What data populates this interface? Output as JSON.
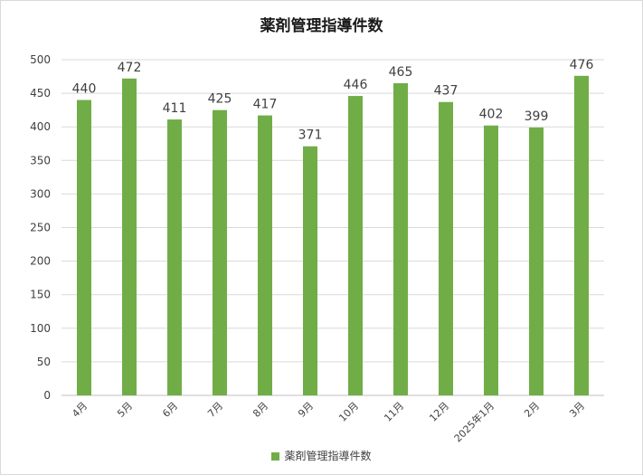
{
  "chart_data": {
    "type": "bar",
    "title": "薬剤管理指導件数",
    "categories": [
      "4月",
      "5月",
      "6月",
      "7月",
      "8月",
      "9月",
      "10月",
      "11月",
      "12月",
      "2025年1月",
      "2月",
      "3月"
    ],
    "series": [
      {
        "name": "薬剤管理指導件数",
        "values": [
          440,
          472,
          411,
          425,
          417,
          371,
          446,
          465,
          437,
          402,
          399,
          476
        ]
      }
    ],
    "ylim": [
      0,
      500
    ],
    "yticks": [
      0,
      50,
      100,
      150,
      200,
      250,
      300,
      350,
      400,
      450,
      500
    ],
    "xlabel": "",
    "ylabel": "",
    "grid": true,
    "legend": "bottom",
    "bar_color": "#70ad47"
  }
}
